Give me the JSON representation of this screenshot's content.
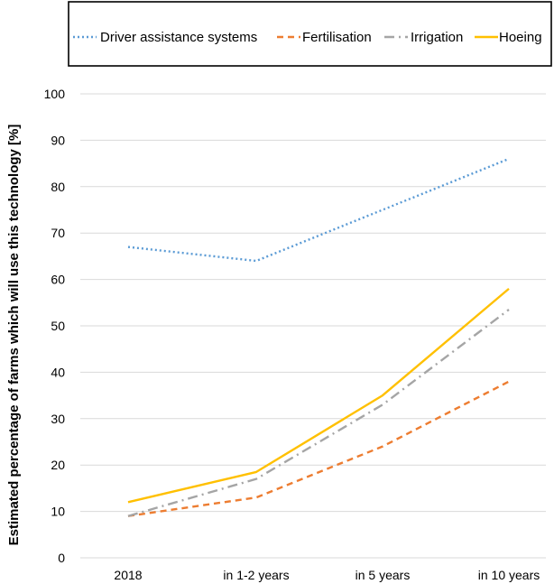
{
  "chart_data": {
    "type": "line",
    "title": "",
    "xlabel": "",
    "ylabel": "Estimated percentage of farms which will use this technology [%]",
    "categories": [
      "2018",
      "in 1-2 years",
      "in 5 years",
      "in 10 years"
    ],
    "ylim": [
      0,
      100
    ],
    "yticks": [
      0,
      10,
      20,
      30,
      40,
      50,
      60,
      70,
      80,
      90,
      100
    ],
    "grid": true,
    "legend_position": "top",
    "series": [
      {
        "name": "Driver assistance systems",
        "values": [
          67,
          64,
          75,
          86
        ],
        "color": "#5b9bd5",
        "line_style": "dotted"
      },
      {
        "name": "Fertilisation",
        "values": [
          9,
          13,
          24,
          38
        ],
        "color": "#ed7d31",
        "line_style": "dashed"
      },
      {
        "name": "Irrigation",
        "values": [
          9,
          17,
          33,
          53.5
        ],
        "color": "#a5a5a5",
        "line_style": "dash-dot"
      },
      {
        "name": "Hoeing",
        "values": [
          12,
          18.5,
          35,
          58
        ],
        "color": "#ffc000",
        "line_style": "solid"
      }
    ]
  }
}
